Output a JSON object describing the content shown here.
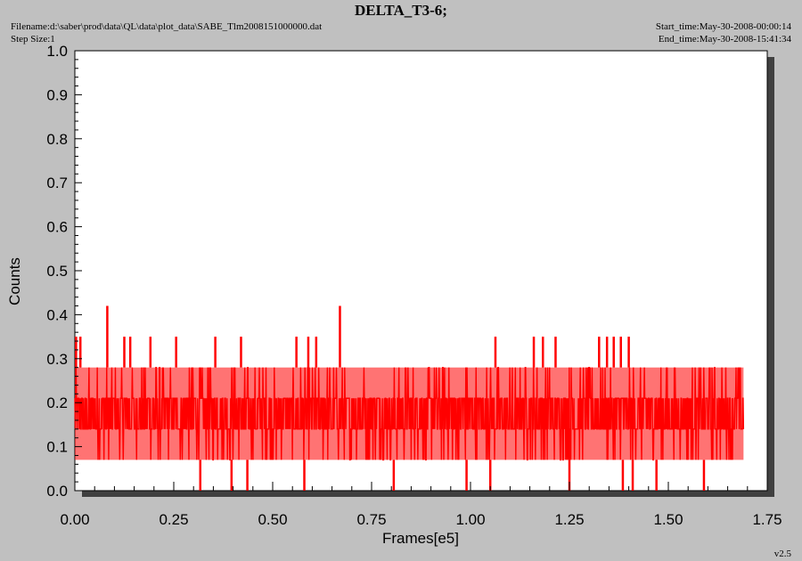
{
  "header": {
    "title": "DELTA_T3-6;",
    "filename": "Filename:d:\\saber\\prod\\data\\QL\\data\\plot_data\\SABE_Tlm2008151000000.dat",
    "step_size": "Step Size:1",
    "start_time": "Start_time:May-30-2008-00:00:14",
    "end_time": "End_time:May-30-2008-15:41:34"
  },
  "footer": {
    "version": "v2.5"
  },
  "colors": {
    "background": "#c0c0c0",
    "plot_bg": "#ffffff",
    "series": "#ff0000",
    "shadow": "#404040"
  },
  "chart_data": {
    "type": "line",
    "title": "DELTA_T3-6;",
    "xlabel": "Frames[e5]",
    "ylabel": "Counts",
    "xlim": [
      0.0,
      1.75
    ],
    "ylim": [
      0.0,
      1.0
    ],
    "xticks": [
      "0.00",
      "0.25",
      "0.50",
      "0.75",
      "1.00",
      "1.25",
      "1.50",
      "1.75"
    ],
    "yticks": [
      "0.0",
      "0.1",
      "0.2",
      "0.3",
      "0.4",
      "0.5",
      "0.6",
      "0.7",
      "0.8",
      "0.9",
      "1.0"
    ],
    "grid": false,
    "series": [
      {
        "name": "",
        "color": "#ff0000",
        "x_range": [
          0.0,
          1.69
        ],
        "levels": [
          0.0,
          0.07,
          0.14,
          0.21,
          0.28,
          0.35,
          0.42
        ],
        "band_low": 0.07,
        "band_high": 0.28,
        "spikes_high": [
          {
            "x": 0.003,
            "y": 0.35
          },
          {
            "x": 0.014,
            "y": 0.35
          },
          {
            "x": 0.082,
            "y": 0.42
          },
          {
            "x": 0.125,
            "y": 0.35
          },
          {
            "x": 0.14,
            "y": 0.35
          },
          {
            "x": 0.191,
            "y": 0.35
          },
          {
            "x": 0.256,
            "y": 0.35
          },
          {
            "x": 0.355,
            "y": 0.35
          },
          {
            "x": 0.42,
            "y": 0.35
          },
          {
            "x": 0.56,
            "y": 0.35
          },
          {
            "x": 0.59,
            "y": 0.35
          },
          {
            "x": 0.61,
            "y": 0.35
          },
          {
            "x": 0.67,
            "y": 0.42
          },
          {
            "x": 1.063,
            "y": 0.35
          },
          {
            "x": 1.16,
            "y": 0.35
          },
          {
            "x": 1.183,
            "y": 0.35
          },
          {
            "x": 1.215,
            "y": 0.35
          },
          {
            "x": 1.325,
            "y": 0.35
          },
          {
            "x": 1.345,
            "y": 0.35
          },
          {
            "x": 1.362,
            "y": 0.35
          },
          {
            "x": 1.38,
            "y": 0.35
          },
          {
            "x": 1.4,
            "y": 0.35
          }
        ],
        "spikes_low": [
          {
            "x": 0.317,
            "y": 0.0
          },
          {
            "x": 0.396,
            "y": 0.0
          },
          {
            "x": 0.436,
            "y": 0.0
          },
          {
            "x": 0.58,
            "y": 0.0
          },
          {
            "x": 0.806,
            "y": 0.0
          },
          {
            "x": 0.99,
            "y": 0.0
          },
          {
            "x": 1.05,
            "y": 0.0
          },
          {
            "x": 1.25,
            "y": 0.0
          },
          {
            "x": 1.385,
            "y": 0.0
          },
          {
            "x": 1.41,
            "y": 0.0
          },
          {
            "x": 1.47,
            "y": 0.0
          },
          {
            "x": 1.59,
            "y": 0.0
          }
        ]
      }
    ]
  }
}
